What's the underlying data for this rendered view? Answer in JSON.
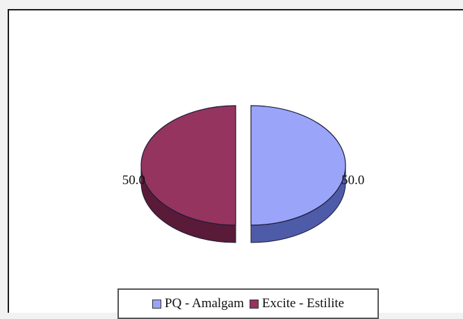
{
  "chart_data": {
    "type": "pie",
    "categories": [
      "PQ - Amalgam",
      "Excite - Estilite"
    ],
    "values": [
      50.0,
      50.0
    ],
    "data_labels": [
      "50.0",
      "50.0"
    ],
    "colors": [
      "#9aa4f8",
      "#95345f"
    ],
    "side_colors": [
      "#4e5ba8",
      "#5a1b38"
    ],
    "legend_position": "bottom",
    "exploded": true,
    "style": "3d"
  }
}
